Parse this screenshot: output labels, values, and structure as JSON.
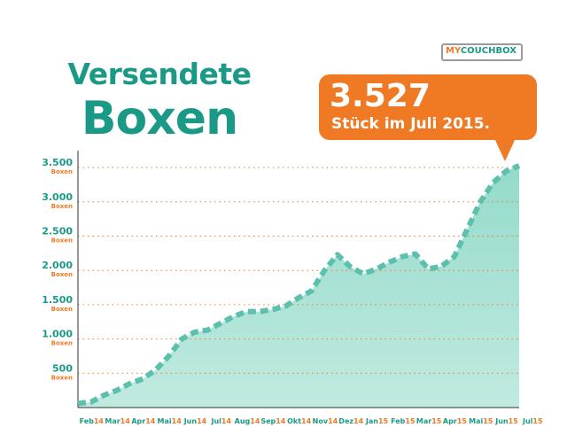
{
  "title": {
    "line1": "Versendete",
    "line2": "Boxen"
  },
  "logo": {
    "part1": "MY",
    "part2": "COUCH",
    "part3": "BOX"
  },
  "callout": {
    "value": "3.527",
    "text": "Stück im Juli 2015."
  },
  "colors": {
    "accent": "#1a9a86",
    "area": "#8ed9c8",
    "line": "#5cc0ac",
    "callout": "#f07a24",
    "gridline": "#f07a24"
  },
  "chart_data": {
    "type": "area",
    "title": "Versendete Boxen",
    "ylim": [
      0,
      3600
    ],
    "grid": true,
    "y_unit": "Boxen",
    "y_ticks": [
      {
        "value": 500,
        "label": "500"
      },
      {
        "value": 1000,
        "label": "1.000"
      },
      {
        "value": 1500,
        "label": "1.500"
      },
      {
        "value": 2000,
        "label": "2.000"
      },
      {
        "value": 2500,
        "label": "2.500"
      },
      {
        "value": 3000,
        "label": "3.000"
      },
      {
        "value": 3500,
        "label": "3.500"
      }
    ],
    "x_labels": [
      {
        "m": "Feb",
        "y": "14"
      },
      {
        "m": "Mar",
        "y": "14"
      },
      {
        "m": "Apr",
        "y": "14"
      },
      {
        "m": "Mai",
        "y": "14"
      },
      {
        "m": "Jun",
        "y": "14"
      },
      {
        "m": "Jul",
        "y": "14"
      },
      {
        "m": "Aug",
        "y": "14"
      },
      {
        "m": "Sep",
        "y": "14"
      },
      {
        "m": "Okt",
        "y": "14"
      },
      {
        "m": "Nov",
        "y": "14"
      },
      {
        "m": "Dez",
        "y": "14"
      },
      {
        "m": "Jan",
        "y": "15"
      },
      {
        "m": "Feb",
        "y": "15"
      },
      {
        "m": "Mar",
        "y": "15"
      },
      {
        "m": "Apr",
        "y": "15"
      },
      {
        "m": "Mai",
        "y": "15"
      },
      {
        "m": "Jun",
        "y": "15"
      },
      {
        "m": "Jul",
        "y": "15"
      }
    ],
    "series": [
      {
        "x": [
          0,
          0.5,
          1,
          1.5,
          2,
          2.5,
          3,
          3.5,
          4,
          4.5,
          5,
          5.5,
          6,
          6.5,
          7,
          7.5,
          8,
          8.5,
          9,
          9.5,
          10,
          10.5,
          11,
          11.5,
          12,
          12.5,
          13,
          13.5,
          14,
          14.5,
          15,
          15.5,
          16,
          16.5,
          17
        ],
        "values": [
          60,
          80,
          180,
          250,
          350,
          420,
          550,
          750,
          1000,
          1100,
          1130,
          1230,
          1330,
          1400,
          1400,
          1430,
          1480,
          1600,
          1700,
          2000,
          2230,
          2050,
          1950,
          2020,
          2120,
          2200,
          2240,
          2020,
          2060,
          2200,
          2600,
          3000,
          3280,
          3450,
          3527
        ]
      }
    ]
  }
}
